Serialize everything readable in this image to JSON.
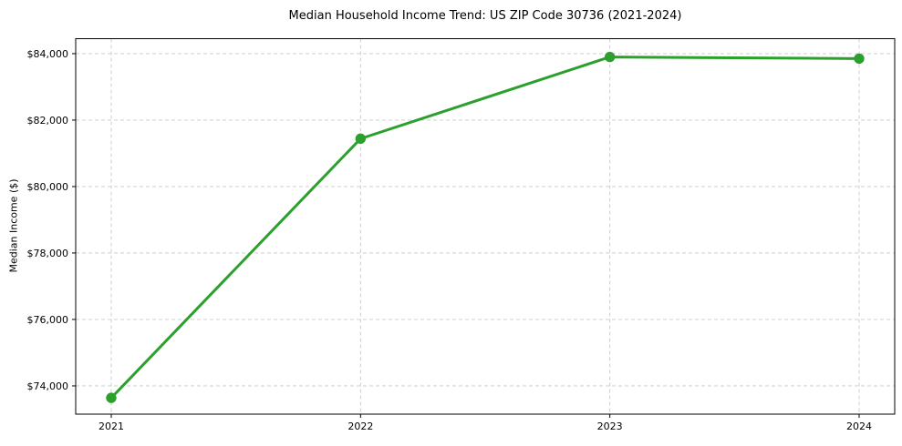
{
  "chart_data": {
    "type": "line",
    "title": "Median Household Income Trend: US ZIP Code 30736 (2021-2024)",
    "xlabel": "",
    "ylabel": "Median Income ($)",
    "categories": [
      "2021",
      "2022",
      "2023",
      "2024"
    ],
    "x": [
      2021,
      2022,
      2023,
      2024
    ],
    "values": [
      73640,
      81440,
      83900,
      83850
    ],
    "ylim": [
      73150,
      84450
    ],
    "yticks": [
      74000,
      76000,
      78000,
      80000,
      82000,
      84000
    ],
    "ytick_labels": [
      "$74,000",
      "$76,000",
      "$78,000",
      "$80,000",
      "$82,000",
      "$84,000"
    ],
    "grid": true,
    "legend": false,
    "line_color": "#2ca02c",
    "marker": "circle",
    "marker_radius": 5.7,
    "line_width": 3,
    "grid_color": "#c9c9c9",
    "axis_color": "#000000",
    "text_color": "#000000",
    "background": "#ffffff"
  }
}
